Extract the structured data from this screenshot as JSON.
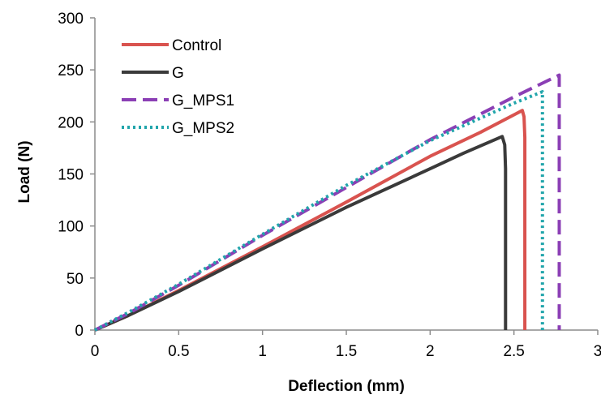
{
  "chart_data": {
    "type": "line",
    "title": "",
    "xlabel": "Deflection (mm)",
    "ylabel": "Load (N)",
    "xlim": [
      0,
      3
    ],
    "ylim": [
      0,
      300
    ],
    "xticks": [
      0,
      0.5,
      1,
      1.5,
      2,
      2.5,
      3
    ],
    "yticks": [
      0,
      50,
      100,
      150,
      200,
      250,
      300
    ],
    "xtick_labels": [
      "0",
      "0.5",
      "1",
      "1.5",
      "2",
      "2.5",
      "3"
    ],
    "ytick_labels": [
      "0",
      "50",
      "100",
      "150",
      "200",
      "250",
      "300"
    ],
    "grid": false,
    "legend_position": "top-left",
    "series": [
      {
        "name": "Control",
        "color": "#d9534f",
        "dash": "solid",
        "x": [
          0,
          0.2,
          0.5,
          1.0,
          1.5,
          2.0,
          2.3,
          2.55,
          2.56,
          2.565,
          2.565
        ],
        "y": [
          0,
          14,
          38,
          80,
          123,
          167,
          190,
          211,
          205,
          185,
          0
        ]
      },
      {
        "name": "G",
        "color": "#3a3a3a",
        "dash": "solid",
        "x": [
          0,
          0.2,
          0.5,
          1.0,
          1.5,
          2.0,
          2.2,
          2.43,
          2.445,
          2.45,
          2.45
        ],
        "y": [
          0,
          14,
          37,
          78,
          118,
          155,
          170,
          186,
          178,
          155,
          0
        ]
      },
      {
        "name": "G_MPS1",
        "color": "#8b3fb5",
        "dash": "dashed",
        "x": [
          0,
          0.2,
          0.5,
          1.0,
          1.5,
          2.0,
          2.5,
          2.77,
          2.77
        ],
        "y": [
          0,
          16,
          43,
          91,
          137,
          183,
          224,
          245,
          0
        ]
      },
      {
        "name": "G_MPS2",
        "color": "#21a5ab",
        "dash": "dotted",
        "x": [
          0,
          0.2,
          0.5,
          1.0,
          1.5,
          2.0,
          2.5,
          2.67,
          2.67
        ],
        "y": [
          0,
          17,
          44,
          92,
          139,
          182,
          218,
          229,
          0
        ]
      }
    ]
  }
}
